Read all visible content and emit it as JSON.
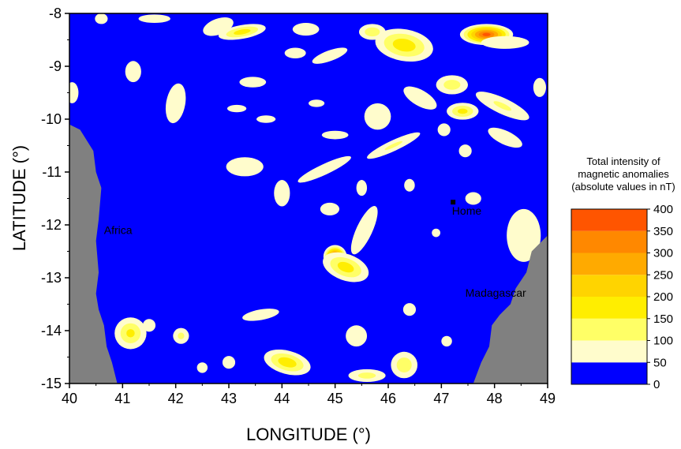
{
  "chart_data": {
    "type": "heatmap",
    "xlabel": "LONGITUDE (°)",
    "ylabel": "LATITUDE (°)",
    "xlim": [
      40,
      49
    ],
    "ylim": [
      -15,
      -8
    ],
    "xticks": [
      "40",
      "41",
      "42",
      "43",
      "44",
      "45",
      "46",
      "47",
      "48",
      "49"
    ],
    "yticks": [
      "-8",
      "-9",
      "-10",
      "-11",
      "-12",
      "-13",
      "-14",
      "-15"
    ],
    "colorbar": {
      "title": [
        "Total intensity of",
        "magnetic anomalies",
        "(absolute values in nT)"
      ],
      "levels": [
        0,
        50,
        100,
        150,
        200,
        250,
        300,
        350,
        400
      ],
      "tick_labels": [
        "0",
        "50",
        "100",
        "150",
        "200",
        "250",
        "300",
        "350",
        "400"
      ],
      "colors": [
        "#0000ff",
        "#fffccc",
        "#ffff66",
        "#ffee00",
        "#ffd400",
        "#ffaa00",
        "#ff8800",
        "#ff5500",
        "#ff0000"
      ]
    },
    "land_color": "#808080",
    "background_color": "#0000ff",
    "places": [
      {
        "name": "Africa",
        "lon": 40.65,
        "lat": -12.1
      },
      {
        "name": "Home",
        "lon": 47.2,
        "lat": -11.73,
        "marker": true,
        "marker_lon": 47.22,
        "marker_lat": -11.57
      },
      {
        "name": "Madagascar",
        "lon": 47.45,
        "lat": -13.28
      }
    ],
    "land": [
      {
        "name": "Africa",
        "polygon": [
          [
            40,
            -10.1
          ],
          [
            40.2,
            -10.2
          ],
          [
            40.45,
            -10.6
          ],
          [
            40.5,
            -11.0
          ],
          [
            40.6,
            -11.3
          ],
          [
            40.55,
            -11.9
          ],
          [
            40.5,
            -12.3
          ],
          [
            40.55,
            -12.9
          ],
          [
            40.5,
            -13.3
          ],
          [
            40.55,
            -13.6
          ],
          [
            40.65,
            -13.9
          ],
          [
            40.7,
            -14.3
          ],
          [
            40.8,
            -14.6
          ],
          [
            40.9,
            -15
          ],
          [
            40,
            -15
          ]
        ]
      },
      {
        "name": "Madagascar",
        "polygon": [
          [
            49,
            -12.2
          ],
          [
            48.7,
            -12.5
          ],
          [
            48.6,
            -12.9
          ],
          [
            48.4,
            -13.2
          ],
          [
            48.3,
            -13.5
          ],
          [
            48.1,
            -13.7
          ],
          [
            47.95,
            -13.9
          ],
          [
            47.9,
            -14.3
          ],
          [
            47.75,
            -14.6
          ],
          [
            47.6,
            -15
          ],
          [
            49,
            -15
          ]
        ]
      }
    ],
    "anomalies": [
      {
        "lon": 47.85,
        "lat": -8.4,
        "rx": 0.5,
        "ry": 0.2,
        "rot": 0,
        "peak": 380
      },
      {
        "lon": 45.0,
        "lat": -12.6,
        "rx": 0.22,
        "ry": 0.22,
        "rot": 0,
        "peak": 380
      },
      {
        "lon": 45.2,
        "lat": -12.8,
        "rx": 0.45,
        "ry": 0.25,
        "rot": 20,
        "peak": 180
      },
      {
        "lon": 45.55,
        "lat": -12.1,
        "rx": 0.15,
        "ry": 0.5,
        "rot": 25,
        "peak": 90
      },
      {
        "lon": 46.3,
        "lat": -8.6,
        "rx": 0.55,
        "ry": 0.3,
        "rot": 10,
        "peak": 190
      },
      {
        "lon": 45.7,
        "lat": -8.35,
        "rx": 0.25,
        "ry": 0.15,
        "rot": 0,
        "peak": 140
      },
      {
        "lon": 43.25,
        "lat": -8.35,
        "rx": 0.45,
        "ry": 0.13,
        "rot": -10,
        "peak": 180
      },
      {
        "lon": 47.4,
        "lat": -9.85,
        "rx": 0.3,
        "ry": 0.16,
        "rot": 0,
        "peak": 170
      },
      {
        "lon": 47.2,
        "lat": -9.35,
        "rx": 0.3,
        "ry": 0.18,
        "rot": 0,
        "peak": 130
      },
      {
        "lon": 48.2,
        "lat": -8.55,
        "rx": 0.45,
        "ry": 0.12,
        "rot": 0,
        "peak": 90
      },
      {
        "lon": 44.1,
        "lat": -14.6,
        "rx": 0.45,
        "ry": 0.22,
        "rot": 15,
        "peak": 190
      },
      {
        "lon": 45.6,
        "lat": -14.85,
        "rx": 0.35,
        "ry": 0.12,
        "rot": 0,
        "peak": 120
      },
      {
        "lon": 46.3,
        "lat": -14.65,
        "rx": 0.25,
        "ry": 0.25,
        "rot": 0,
        "peak": 140
      },
      {
        "lon": 41.15,
        "lat": -14.05,
        "rx": 0.3,
        "ry": 0.3,
        "rot": 0,
        "peak": 160
      },
      {
        "lon": 42.1,
        "lat": -14.1,
        "rx": 0.15,
        "ry": 0.15,
        "rot": 0,
        "peak": 110
      },
      {
        "lon": 44.8,
        "lat": -10.95,
        "rx": 0.55,
        "ry": 0.1,
        "rot": -25,
        "peak": 90
      },
      {
        "lon": 46.1,
        "lat": -10.5,
        "rx": 0.55,
        "ry": 0.1,
        "rot": -25,
        "peak": 100
      },
      {
        "lon": 41.6,
        "lat": -8.1,
        "rx": 0.3,
        "ry": 0.08,
        "rot": 0,
        "peak": 80
      },
      {
        "lon": 42.8,
        "lat": -8.25,
        "rx": 0.3,
        "ry": 0.15,
        "rot": -20,
        "peak": 80
      },
      {
        "lon": 41.2,
        "lat": -9.1,
        "rx": 0.15,
        "ry": 0.2,
        "rot": 0,
        "peak": 80
      },
      {
        "lon": 44.45,
        "lat": -8.3,
        "rx": 0.25,
        "ry": 0.12,
        "rot": 0,
        "peak": 80
      },
      {
        "lon": 44.25,
        "lat": -8.75,
        "rx": 0.2,
        "ry": 0.1,
        "rot": 0,
        "peak": 70
      },
      {
        "lon": 44.9,
        "lat": -8.8,
        "rx": 0.35,
        "ry": 0.1,
        "rot": -20,
        "peak": 80
      },
      {
        "lon": 43.45,
        "lat": -9.3,
        "rx": 0.25,
        "ry": 0.1,
        "rot": 0,
        "peak": 80
      },
      {
        "lon": 42.0,
        "lat": -9.7,
        "rx": 0.18,
        "ry": 0.38,
        "rot": 10,
        "peak": 80
      },
      {
        "lon": 43.15,
        "lat": -9.8,
        "rx": 0.18,
        "ry": 0.07,
        "rot": 0,
        "peak": 70
      },
      {
        "lon": 43.7,
        "lat": -10.0,
        "rx": 0.18,
        "ry": 0.07,
        "rot": 0,
        "peak": 70
      },
      {
        "lon": 44.65,
        "lat": -9.7,
        "rx": 0.15,
        "ry": 0.07,
        "rot": 0,
        "peak": 70
      },
      {
        "lon": 45.0,
        "lat": -10.3,
        "rx": 0.25,
        "ry": 0.08,
        "rot": 0,
        "peak": 70
      },
      {
        "lon": 45.8,
        "lat": -9.95,
        "rx": 0.25,
        "ry": 0.25,
        "rot": 0,
        "peak": 80
      },
      {
        "lon": 46.6,
        "lat": -9.6,
        "rx": 0.35,
        "ry": 0.15,
        "rot": 30,
        "peak": 80
      },
      {
        "lon": 48.15,
        "lat": -9.75,
        "rx": 0.55,
        "ry": 0.15,
        "rot": 25,
        "peak": 100
      },
      {
        "lon": 48.2,
        "lat": -10.35,
        "rx": 0.35,
        "ry": 0.13,
        "rot": 25,
        "peak": 80
      },
      {
        "lon": 47.45,
        "lat": -10.6,
        "rx": 0.12,
        "ry": 0.12,
        "rot": 0,
        "peak": 70
      },
      {
        "lon": 47.05,
        "lat": -10.2,
        "rx": 0.12,
        "ry": 0.12,
        "rot": 0,
        "peak": 70
      },
      {
        "lon": 48.85,
        "lat": -9.4,
        "rx": 0.12,
        "ry": 0.18,
        "rot": 0,
        "peak": 70
      },
      {
        "lon": 40.05,
        "lat": -9.5,
        "rx": 0.12,
        "ry": 0.2,
        "rot": 0,
        "peak": 70
      },
      {
        "lon": 43.3,
        "lat": -10.9,
        "rx": 0.35,
        "ry": 0.18,
        "rot": 0,
        "peak": 80
      },
      {
        "lon": 44.9,
        "lat": -11.7,
        "rx": 0.18,
        "ry": 0.12,
        "rot": 0,
        "peak": 70
      },
      {
        "lon": 44.0,
        "lat": -11.4,
        "rx": 0.15,
        "ry": 0.25,
        "rot": 0,
        "peak": 70
      },
      {
        "lon": 45.5,
        "lat": -11.3,
        "rx": 0.1,
        "ry": 0.15,
        "rot": 0,
        "peak": 70
      },
      {
        "lon": 46.4,
        "lat": -11.25,
        "rx": 0.1,
        "ry": 0.12,
        "rot": 0,
        "peak": 70
      },
      {
        "lon": 48.55,
        "lat": -12.2,
        "rx": 0.32,
        "ry": 0.5,
        "rot": 0,
        "peak": 90
      },
      {
        "lon": 47.6,
        "lat": -11.5,
        "rx": 0.15,
        "ry": 0.12,
        "rot": 0,
        "peak": 70
      },
      {
        "lon": 46.4,
        "lat": -13.6,
        "rx": 0.12,
        "ry": 0.12,
        "rot": 0,
        "peak": 70
      },
      {
        "lon": 45.4,
        "lat": -14.1,
        "rx": 0.2,
        "ry": 0.2,
        "rot": 0,
        "peak": 70
      },
      {
        "lon": 43.6,
        "lat": -13.7,
        "rx": 0.35,
        "ry": 0.1,
        "rot": -10,
        "peak": 70
      },
      {
        "lon": 43.0,
        "lat": -14.6,
        "rx": 0.12,
        "ry": 0.12,
        "rot": 0,
        "peak": 70
      },
      {
        "lon": 42.5,
        "lat": -14.7,
        "rx": 0.1,
        "ry": 0.1,
        "rot": 0,
        "peak": 70
      },
      {
        "lon": 41.5,
        "lat": -13.9,
        "rx": 0.12,
        "ry": 0.12,
        "rot": 0,
        "peak": 70
      },
      {
        "lon": 47.1,
        "lat": -14.2,
        "rx": 0.1,
        "ry": 0.1,
        "rot": 0,
        "peak": 70
      },
      {
        "lon": 46.9,
        "lat": -12.15,
        "rx": 0.08,
        "ry": 0.08,
        "rot": 0,
        "peak": 65
      },
      {
        "lon": 40.6,
        "lat": -8.1,
        "rx": 0.12,
        "ry": 0.1,
        "rot": 0,
        "peak": 70
      }
    ]
  }
}
